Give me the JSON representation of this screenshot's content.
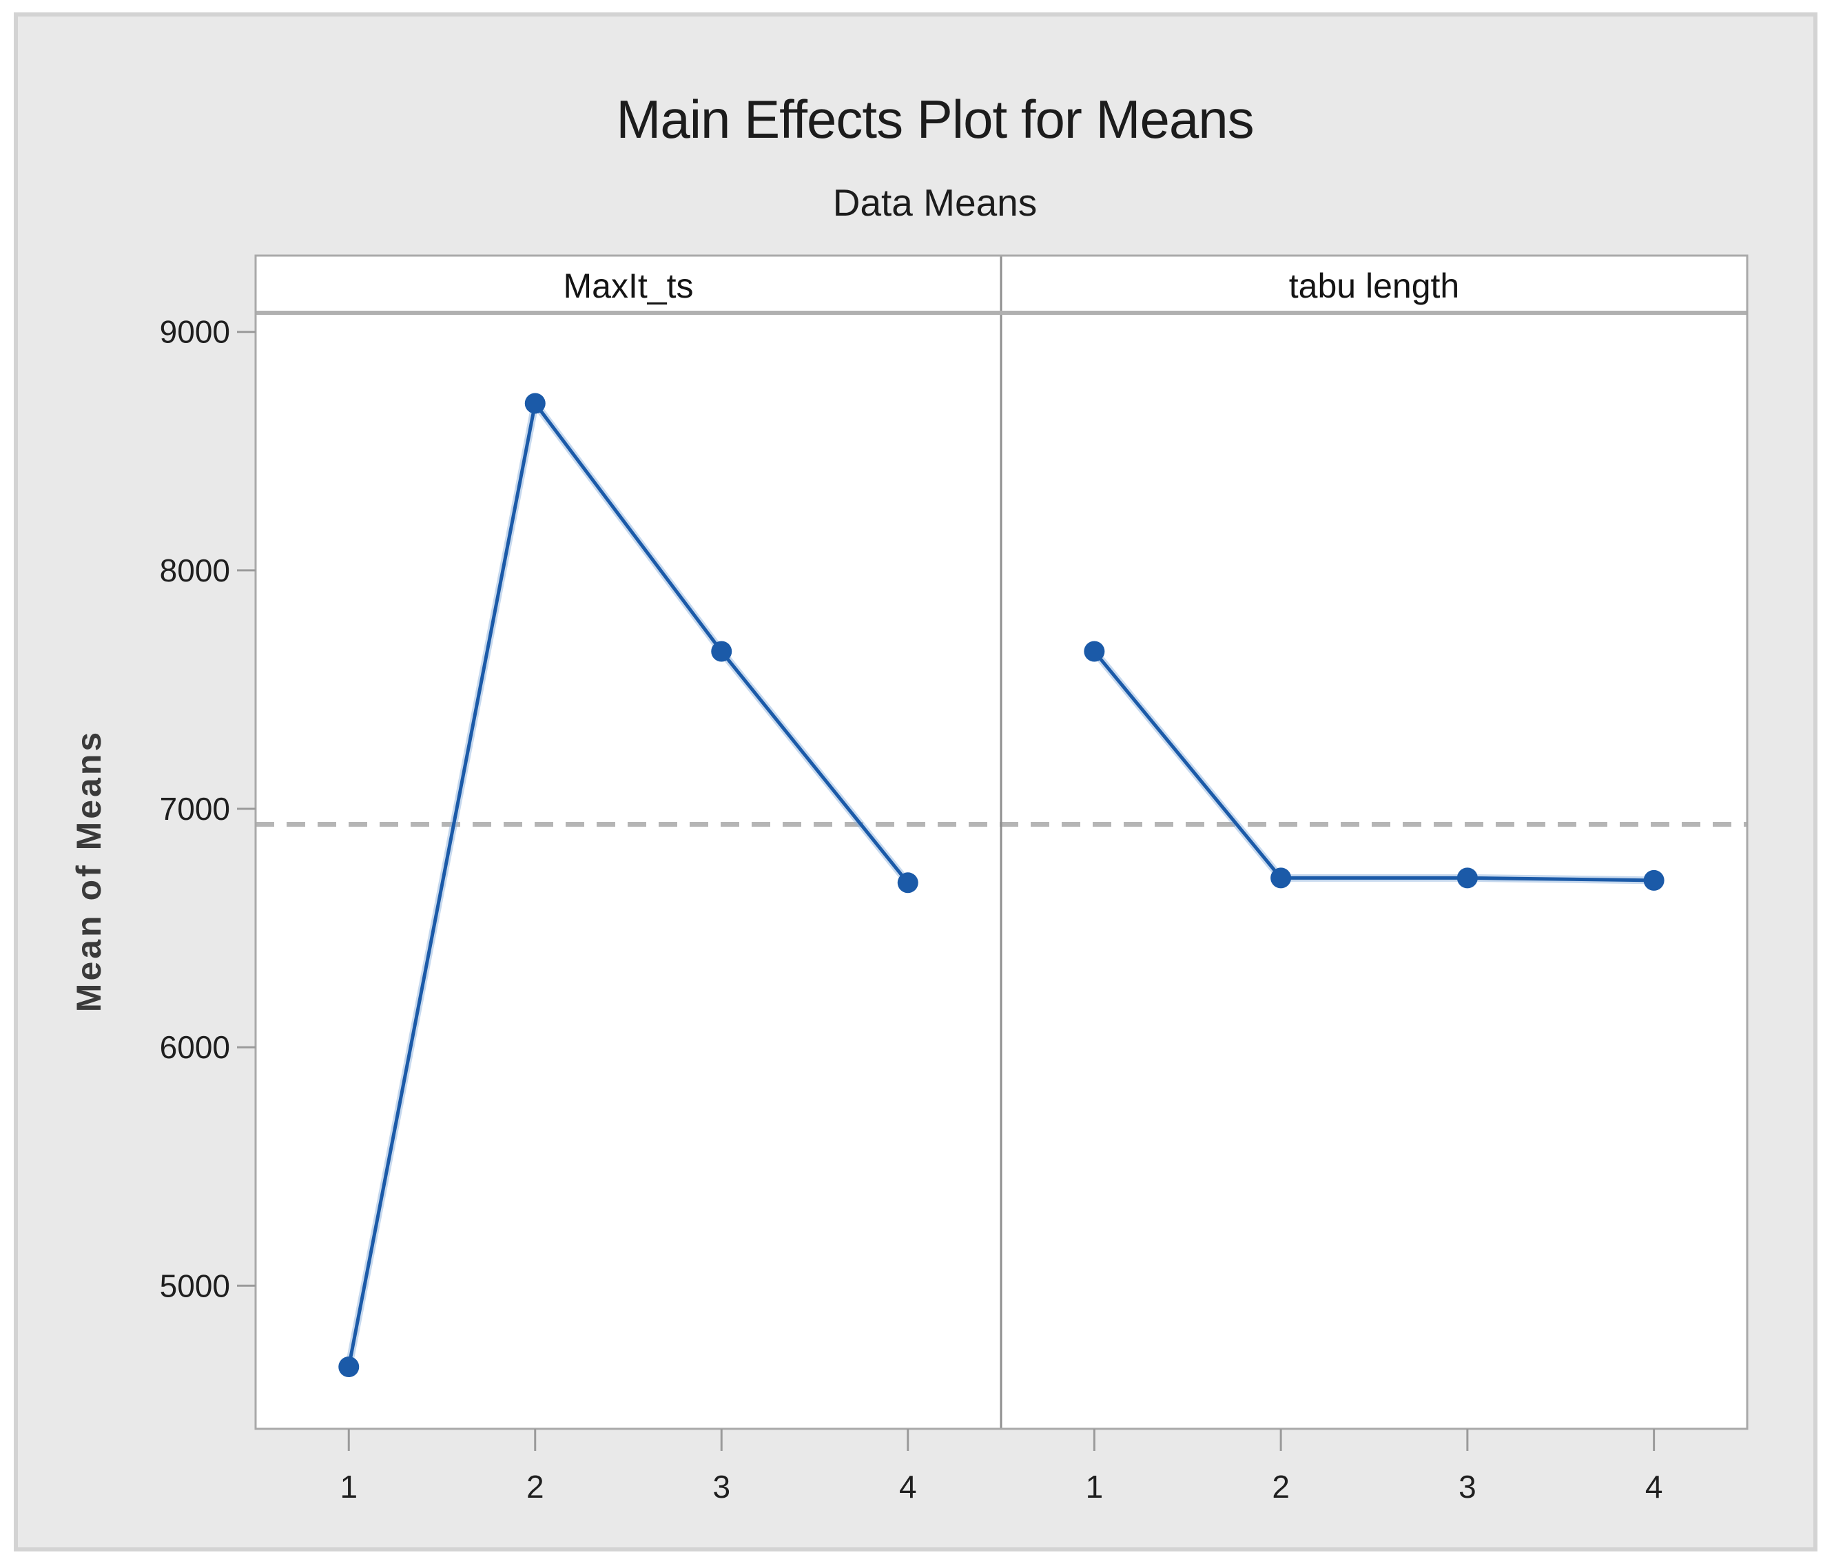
{
  "chart_data": {
    "type": "line",
    "title": "Main Effects Plot for Means",
    "subtitle": "Data Means",
    "ylabel": "Mean of Means",
    "panels": [
      {
        "label": "MaxIt_ts",
        "categories": [
          "1",
          "2",
          "3",
          "4"
        ],
        "values": [
          4660,
          8700,
          7660,
          6690
        ]
      },
      {
        "label": "tabu length",
        "categories": [
          "1",
          "2",
          "3",
          "4"
        ],
        "values": [
          7660,
          6710,
          6710,
          6700
        ]
      }
    ],
    "reference_line_value": 6935,
    "y_ticks": [
      5000,
      6000,
      7000,
      8000,
      9000
    ],
    "ylim": [
      4400,
      9080
    ],
    "grid": false,
    "legend": "none",
    "colors": {
      "series_blue": "#1b5aa8",
      "series_halo": "#8fb3dd",
      "reference_dash_gray": "#b5b5b5",
      "panel_border_gray": "#a9a9a9",
      "figure_background": "#e9e9e9",
      "panel_background": "#ffffff",
      "tick_text": "#1f1f1f",
      "axis_label_text": "#3a3a3a"
    }
  }
}
